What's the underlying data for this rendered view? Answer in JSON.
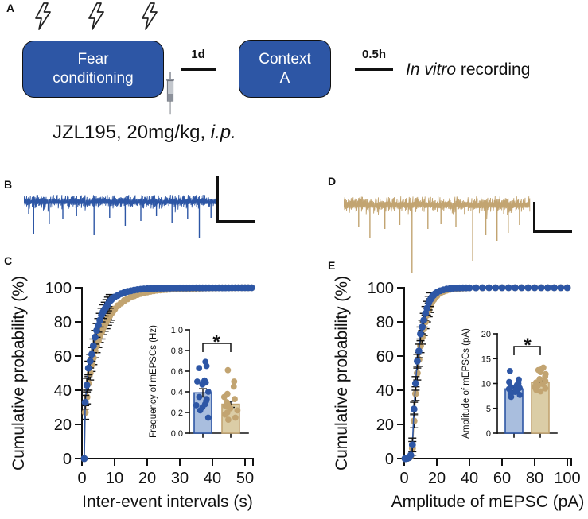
{
  "panel_labels": {
    "a": "A",
    "b": "B",
    "c": "C",
    "d": "D",
    "e": "E"
  },
  "colors": {
    "blue": "#2d56a5",
    "tan": "#c2a471",
    "blue_fill": "#a9bede",
    "tan_fill": "#dbcda6",
    "axis": "#111111",
    "syringe_gray": "#8b909a"
  },
  "panel_a": {
    "stimulus_icon": "lightning-bolt",
    "stimulus_count": 3,
    "box1_lines": [
      "Fear",
      "conditioning"
    ],
    "interval1": "1d",
    "box2_lines": [
      "Context",
      "A"
    ],
    "interval2": "0.5h",
    "recording_italic": "In vitro",
    "recording_rest": " recording",
    "injection_text": "JZL195, 20mg/kg, ",
    "injection_text_italic": "i.p."
  },
  "traces": {
    "b": {
      "color": "blue",
      "seed": 3,
      "n": 210,
      "baseline": 34,
      "up": 9,
      "down": 11,
      "events": [
        {
          "at": 0.05,
          "d": 40
        },
        {
          "at": 0.13,
          "d": 28
        },
        {
          "at": 0.2,
          "d": 22
        },
        {
          "at": 0.27,
          "d": 18
        },
        {
          "at": 0.36,
          "d": 42
        },
        {
          "at": 0.44,
          "d": 20
        },
        {
          "at": 0.52,
          "d": 30
        },
        {
          "at": 0.6,
          "d": 24
        },
        {
          "at": 0.68,
          "d": 18
        },
        {
          "at": 0.76,
          "d": 26
        },
        {
          "at": 0.84,
          "d": 22
        },
        {
          "at": 0.9,
          "d": 46
        },
        {
          "at": 0.96,
          "d": 20
        }
      ]
    },
    "d": {
      "color": "tan",
      "seed": 11,
      "n": 200,
      "baseline": 36,
      "up": 11,
      "down": 13,
      "events": [
        {
          "at": 0.08,
          "d": 28
        },
        {
          "at": 0.14,
          "d": 42
        },
        {
          "at": 0.22,
          "d": 30
        },
        {
          "at": 0.3,
          "d": 25
        },
        {
          "at": 0.365,
          "d": 86
        },
        {
          "at": 0.45,
          "d": 30
        },
        {
          "at": 0.52,
          "d": 24
        },
        {
          "at": 0.6,
          "d": 28
        },
        {
          "at": 0.69,
          "d": 70
        },
        {
          "at": 0.76,
          "d": 38
        },
        {
          "at": 0.82,
          "d": 45
        },
        {
          "at": 0.88,
          "d": 35
        },
        {
          "at": 0.94,
          "d": 25
        }
      ]
    }
  },
  "chart_data": [
    {
      "id": "c_main",
      "type": "line",
      "panel": "C",
      "title": "",
      "xlabel": "Inter-event intervals (s)",
      "ylabel": "Cumulative probability (%)",
      "xlim": [
        0,
        52
      ],
      "ylim": [
        0,
        100
      ],
      "grid": false,
      "legend": "none",
      "xticks": [
        0,
        10,
        20,
        30,
        40,
        50
      ],
      "yticks": [
        0,
        20,
        40,
        60,
        80,
        100
      ],
      "series": [
        {
          "name": "tan",
          "color": "tan",
          "err": 4,
          "err_range": [
            1,
            9
          ],
          "x": [
            0.7,
            1,
            1.5,
            2,
            2.5,
            3,
            3.5,
            4,
            4.5,
            5,
            5.5,
            6,
            6.5,
            7,
            7.5,
            8,
            8.5,
            9,
            9.5,
            10,
            11,
            12,
            13,
            14,
            15,
            16,
            17,
            18,
            19,
            20,
            21,
            22,
            23,
            24,
            25,
            26,
            27,
            28,
            29,
            30,
            31,
            32,
            33,
            34,
            35,
            36,
            37,
            38,
            39,
            40,
            41,
            42,
            43,
            44,
            45,
            46,
            47,
            48,
            49,
            50,
            51,
            52
          ],
          "y": [
            0,
            27,
            36,
            44,
            50,
            55,
            59,
            63,
            66,
            69,
            72,
            74,
            76.5,
            78.5,
            80,
            82,
            83.5,
            85,
            86.3,
            87.5,
            89.5,
            91,
            92.5,
            93.5,
            94.5,
            95.3,
            96,
            96.6,
            97.1,
            97.5,
            97.9,
            98.2,
            98.5,
            98.7,
            98.9,
            99,
            99.1,
            99.2,
            99.3,
            99.4,
            99.45,
            99.5,
            99.55,
            99.6,
            99.65,
            99.7,
            99.75,
            99.8,
            99.83,
            99.86,
            99.88,
            99.9,
            99.92,
            99.94,
            99.95,
            99.96,
            99.97,
            99.98,
            99.99,
            100,
            100,
            100
          ]
        },
        {
          "name": "blue",
          "color": "blue",
          "err": 4,
          "err_range": [
            1,
            8.5
          ],
          "x": [
            0.7,
            1,
            1.5,
            2,
            2.5,
            3,
            3.5,
            4,
            4.5,
            5,
            5.5,
            6,
            6.5,
            7,
            7.5,
            8,
            8.5,
            9,
            9.5,
            10,
            11,
            12,
            13,
            14,
            15,
            16,
            17,
            18,
            19,
            20,
            21,
            22,
            23,
            24,
            25,
            26,
            27,
            28,
            29,
            30,
            31,
            32,
            33,
            34,
            35,
            36,
            37,
            38,
            39,
            40,
            41,
            42,
            43,
            44,
            45,
            46,
            47,
            48,
            49,
            50,
            51,
            52
          ],
          "y": [
            0,
            33,
            43,
            53,
            57,
            61,
            66,
            71,
            75,
            78,
            81,
            84,
            86,
            87.5,
            89,
            90.5,
            92,
            93,
            94,
            94.5,
            95.5,
            96.5,
            97.2,
            97.8,
            98.2,
            98.6,
            98.9,
            99.1,
            99.3,
            99.5,
            99.55,
            99.6,
            99.65,
            99.7,
            99.72,
            99.75,
            99.78,
            99.8,
            99.82,
            99.85,
            99.86,
            99.87,
            99.88,
            99.89,
            99.9,
            99.91,
            99.92,
            99.93,
            99.94,
            99.95,
            99.95,
            99.96,
            99.96,
            99.97,
            99.97,
            99.98,
            99.98,
            99.99,
            99.99,
            100,
            100,
            100
          ]
        }
      ]
    },
    {
      "id": "c_inset",
      "type": "bar",
      "panel": "C-inset",
      "title": "",
      "xlabel": "",
      "ylabel": "Frequency of mEPSCs (Hz)",
      "ylim": [
        0,
        1
      ],
      "yticks": [
        0,
        0.2,
        0.4,
        0.6,
        0.8,
        1
      ],
      "ytick_labels": [
        "0.0",
        "0.2",
        "0.4",
        "0.6",
        "0.8",
        "1.0"
      ],
      "significance": "*",
      "grid": false,
      "legend": "none",
      "bars": [
        {
          "name": "blue",
          "color": "blue",
          "mean": 0.39,
          "sem": 0.04,
          "points": [
            0.69,
            0.65,
            0.63,
            0.51,
            0.5,
            0.5,
            0.49,
            0.47,
            0.4,
            0.35,
            0.33,
            0.31,
            0.28,
            0.27,
            0.25,
            0.22,
            0.15
          ]
        },
        {
          "name": "tan",
          "color": "tan",
          "mean": 0.28,
          "sem": 0.03,
          "points": [
            0.61,
            0.5,
            0.45,
            0.38,
            0.35,
            0.33,
            0.3,
            0.28,
            0.26,
            0.24,
            0.22,
            0.2,
            0.18,
            0.15,
            0.13
          ]
        }
      ]
    },
    {
      "id": "e_main",
      "type": "line",
      "panel": "E",
      "title": "",
      "xlabel": "Amplitude of mEPSC (pA)",
      "ylabel": "Cumulative probability (%)",
      "xlim": [
        0,
        105
      ],
      "ylim": [
        0,
        100
      ],
      "grid": false,
      "legend": "none",
      "xticks": [
        0,
        20,
        40,
        60,
        80,
        100
      ],
      "yticks": [
        0,
        20,
        40,
        60,
        80,
        100
      ],
      "series": [
        {
          "name": "tan",
          "color": "tan",
          "err": 4,
          "err_range": [
            5,
            16
          ],
          "x": [
            0.5,
            1,
            2,
            3,
            4,
            5,
            6,
            7,
            8,
            9,
            10,
            11,
            12,
            13,
            14,
            15,
            16,
            17,
            18,
            19,
            20,
            22,
            24,
            26,
            28,
            30,
            32,
            34,
            36,
            38,
            40,
            44,
            48,
            52,
            56,
            60,
            64,
            68,
            72,
            76,
            80,
            84,
            88,
            92,
            96,
            100
          ],
          "y": [
            0,
            0,
            0.15,
            0.5,
            1.5,
            6,
            22,
            38,
            50,
            58,
            66,
            71,
            76,
            80,
            84,
            87,
            89.5,
            91.5,
            93,
            94.2,
            95.2,
            96.8,
            97.8,
            98.5,
            99,
            99.3,
            99.5,
            99.65,
            99.75,
            99.85,
            99.9,
            99.95,
            99.97,
            99.99,
            100,
            100,
            100,
            100,
            100,
            100,
            100,
            100,
            100,
            100,
            100,
            100
          ]
        },
        {
          "name": "blue",
          "color": "blue",
          "err": 4,
          "err_range": [
            5,
            16
          ],
          "x": [
            0.5,
            1,
            2,
            3,
            4,
            5,
            6,
            7,
            8,
            9,
            10,
            11,
            12,
            13,
            14,
            15,
            16,
            17,
            18,
            19,
            20,
            22,
            24,
            26,
            28,
            30,
            32,
            34,
            36,
            38,
            40,
            44,
            48,
            52,
            56,
            60,
            64,
            68,
            72,
            76,
            80,
            84,
            88,
            92,
            96,
            100
          ],
          "y": [
            0,
            0,
            0.2,
            0.6,
            2,
            8,
            29,
            44,
            57,
            63,
            73,
            77,
            81,
            85,
            88,
            91,
            93,
            94.5,
            95.6,
            96.5,
            97.2,
            98.2,
            98.8,
            99.2,
            99.5,
            99.7,
            99.8,
            99.85,
            99.9,
            99.93,
            99.95,
            99.97,
            99.99,
            100,
            100,
            100,
            100,
            100,
            100,
            100,
            100,
            100,
            100,
            100,
            100,
            100
          ]
        }
      ]
    },
    {
      "id": "e_inset",
      "type": "bar",
      "panel": "E-inset",
      "title": "",
      "xlabel": "",
      "ylabel": "Amplitude of mEPSCs (pA)",
      "ylim": [
        0,
        20
      ],
      "yticks": [
        0,
        5,
        10,
        15,
        20
      ],
      "ytick_labels": [
        "0",
        "5",
        "10",
        "15",
        "20"
      ],
      "significance": "*",
      "grid": false,
      "legend": "none",
      "bars": [
        {
          "name": "blue",
          "color": "blue",
          "mean": 8.9,
          "sem": 0.35,
          "points": [
            12.5,
            10.8,
            10.3,
            10,
            9.7,
            9.5,
            9.3,
            9.1,
            8.9,
            8.7,
            8.5,
            8.3,
            8,
            7.7,
            7.3
          ]
        },
        {
          "name": "tan",
          "color": "tan",
          "mean": 10.2,
          "sem": 0.4,
          "points": [
            13.2,
            13,
            12.7,
            12.3,
            11.9,
            11.4,
            10.9,
            10.5,
            10.2,
            9.9,
            9.6,
            9.3,
            9,
            8.7,
            8.4
          ]
        }
      ]
    }
  ]
}
